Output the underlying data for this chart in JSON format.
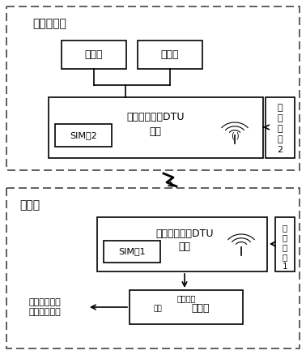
{
  "background_color": "#ffffff",
  "top_label": "电气值班室",
  "bottom_label": "电磁站",
  "zhishideng": "指示灯",
  "fengmingqi": "蜂鸣器",
  "dtu2_line1": "第二无线终端DTU",
  "dtu2_line2": "模块",
  "sim2": "SIM卡2",
  "power2_lines": "电\n源\n模\n块\n2",
  "dtu1_line1": "第一无线终端DTU",
  "dtu1_line2": "模块",
  "sim1": "SIM卡1",
  "power1_lines": "电\n源\n模\n块\n1",
  "relay_top": "离开接点",
  "relay_bottom": "继电器",
  "relay_small": "线圈",
  "connect": "与电源开关动\n力输出端连接"
}
